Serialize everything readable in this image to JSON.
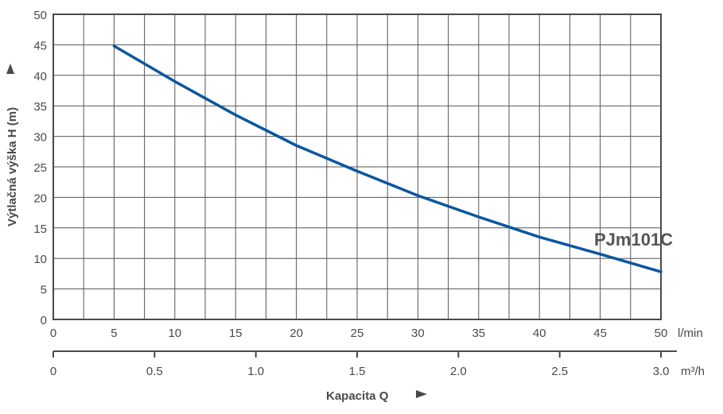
{
  "chart_data": {
    "type": "line",
    "title": "",
    "model_label": "PJm101C",
    "xlabel": "Kapacita Q",
    "ylabel": "Výtlačná výška H (m)",
    "x_unit_primary": "l/min",
    "x_unit_secondary": "m³/h",
    "xlim": [
      0,
      50
    ],
    "ylim": [
      0,
      50
    ],
    "grid": true,
    "x_ticks": [
      0,
      5,
      10,
      15,
      20,
      25,
      30,
      35,
      40,
      45,
      50
    ],
    "x_ticks_secondary": [
      "0",
      "0.5",
      "1.0",
      "1.5",
      "2.0",
      "2.5",
      "3.0"
    ],
    "y_ticks": [
      0,
      5,
      10,
      15,
      20,
      25,
      30,
      35,
      40,
      45,
      50
    ],
    "series": [
      {
        "name": "PJm101C",
        "color": "#0b56a0",
        "x": [
          5,
          10,
          15,
          20,
          25,
          30,
          35,
          40,
          45,
          50
        ],
        "values": [
          44.8,
          39.0,
          33.5,
          28.5,
          24.3,
          20.3,
          16.8,
          13.5,
          10.7,
          7.8
        ]
      }
    ]
  }
}
